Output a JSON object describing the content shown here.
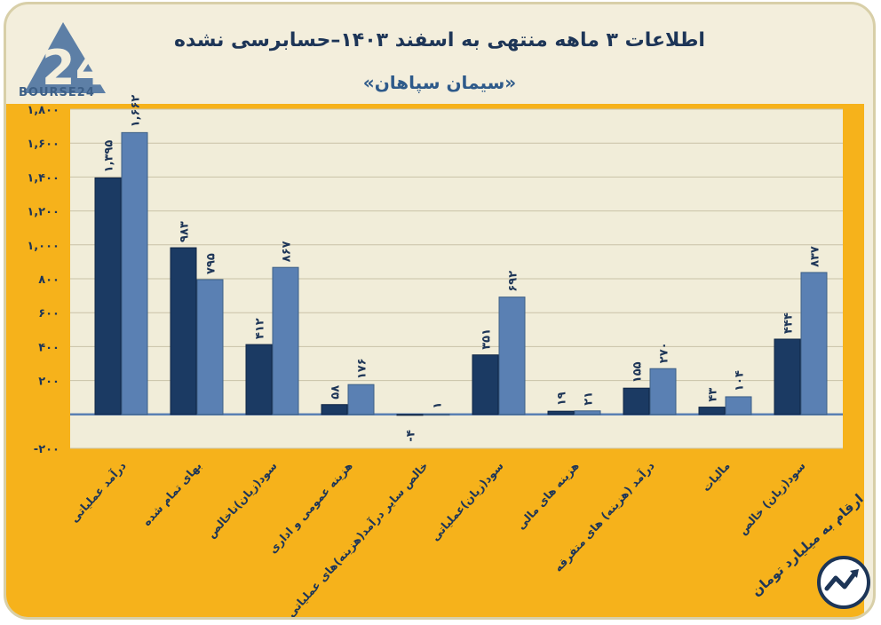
{
  "header": {
    "title": "اطلاعات ۳ ماهه منتهی به اسفند ۱۴۰۳–حسابرسی نشده",
    "subtitle": "«سیمان سپاهان»",
    "logo_text": "BOURSE24",
    "note": "ارقام به میلیارد تومان"
  },
  "colors": {
    "orange": "#f6b21b",
    "plot_bg": "#f1edd9",
    "series_dark": "#1b3a63",
    "series_light": "#5a80b3",
    "text_dark": "#1d3557"
  },
  "chart_data": {
    "type": "bar",
    "categories": [
      "درآمد عملیاتی",
      "بهای تمام شده",
      "سود(زیان)ناخالص",
      "هزینه عمومی و اداری",
      "خالص سایر درآمد(هزینه)های عملیاتی",
      "سود(زیان)عملیاتی",
      "هزینه های مالی",
      "درآمد (هزینه) های متفرقه",
      "مالیات",
      "سود(زیان) خالص"
    ],
    "series": [
      {
        "values": [
          1395,
          983,
          412,
          58,
          -4,
          351,
          19,
          155,
          43,
          444
        ]
      },
      {
        "values": [
          1662,
          795,
          867,
          176,
          1,
          692,
          21,
          270,
          104,
          837
        ]
      }
    ],
    "value_labels": [
      [
        "۱,۳۹۵",
        "۹۸۳",
        "۴۱۲",
        "۵۸",
        "-۴",
        "۳۵۱",
        "۱۹",
        "۱۵۵",
        "۴۳",
        "۴۴۴"
      ],
      [
        "۱,۶۶۲",
        "۷۹۵",
        "۸۶۷",
        "۱۷۶",
        "۱",
        "۶۹۲",
        "۲۱",
        "۲۷۰",
        "۱۰۴",
        "۸۳۷"
      ]
    ],
    "yticks": [
      -200,
      200,
      400,
      600,
      800,
      1000,
      1200,
      1400,
      1600,
      1800
    ],
    "ytick_labels": [
      "-۲۰۰",
      "۲۰۰",
      "۴۰۰",
      "۶۰۰",
      "۸۰۰",
      "۱,۰۰۰",
      "۱,۲۰۰",
      "۱,۴۰۰",
      "۱,۶۰۰",
      "۱,۸۰۰"
    ],
    "ylim": [
      -200,
      1800
    ],
    "grid": true,
    "legend": "none"
  }
}
